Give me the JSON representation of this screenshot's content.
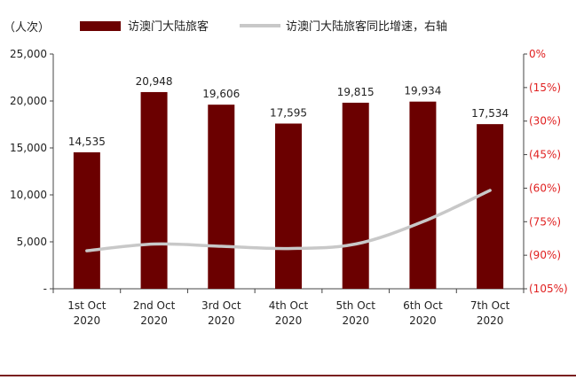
{
  "chart_data": {
    "type": "bar",
    "y_unit_label": "（人次）",
    "categories": [
      [
        "1st Oct",
        "2020"
      ],
      [
        "2nd Oct",
        "2020"
      ],
      [
        "3rd Oct",
        "2020"
      ],
      [
        "4th Oct",
        "2020"
      ],
      [
        "5th Oct",
        "2020"
      ],
      [
        "6th Oct",
        "2020"
      ],
      [
        "7th Oct",
        "2020"
      ]
    ],
    "series": [
      {
        "name": "访澳门大陆旅客",
        "type": "bar",
        "axis": "left",
        "color": "#6b0000",
        "values": [
          14535,
          20948,
          19606,
          17595,
          19815,
          19934,
          17534
        ],
        "labels": [
          "14,535",
          "20,948",
          "19,606",
          "17,595",
          "19,815",
          "19,934",
          "17,534"
        ]
      },
      {
        "name": "访澳门大陆旅客同比增速，右轴",
        "type": "line",
        "axis": "right",
        "color": "#c8c8c8",
        "values": [
          -88,
          -85,
          -86,
          -87,
          -85,
          -75,
          -61
        ]
      }
    ],
    "left_axis": {
      "min": 0,
      "max": 25000,
      "ticks": [
        0,
        5000,
        10000,
        15000,
        20000,
        25000
      ],
      "tick_labels": [
        "-",
        "5,000",
        "10,000",
        "15,000",
        "20,000",
        "25,000"
      ]
    },
    "right_axis": {
      "min": -105,
      "max": 0,
      "ticks": [
        0,
        -15,
        -30,
        -45,
        -60,
        -75,
        -90,
        -105
      ],
      "tick_labels": [
        "0%",
        "(15%)",
        "(30%)",
        "(45%)",
        "(60%)",
        "(75%)",
        "(90%)",
        "(105%)"
      ],
      "color": "#e02020"
    },
    "grid": false,
    "legend_position": "top"
  }
}
